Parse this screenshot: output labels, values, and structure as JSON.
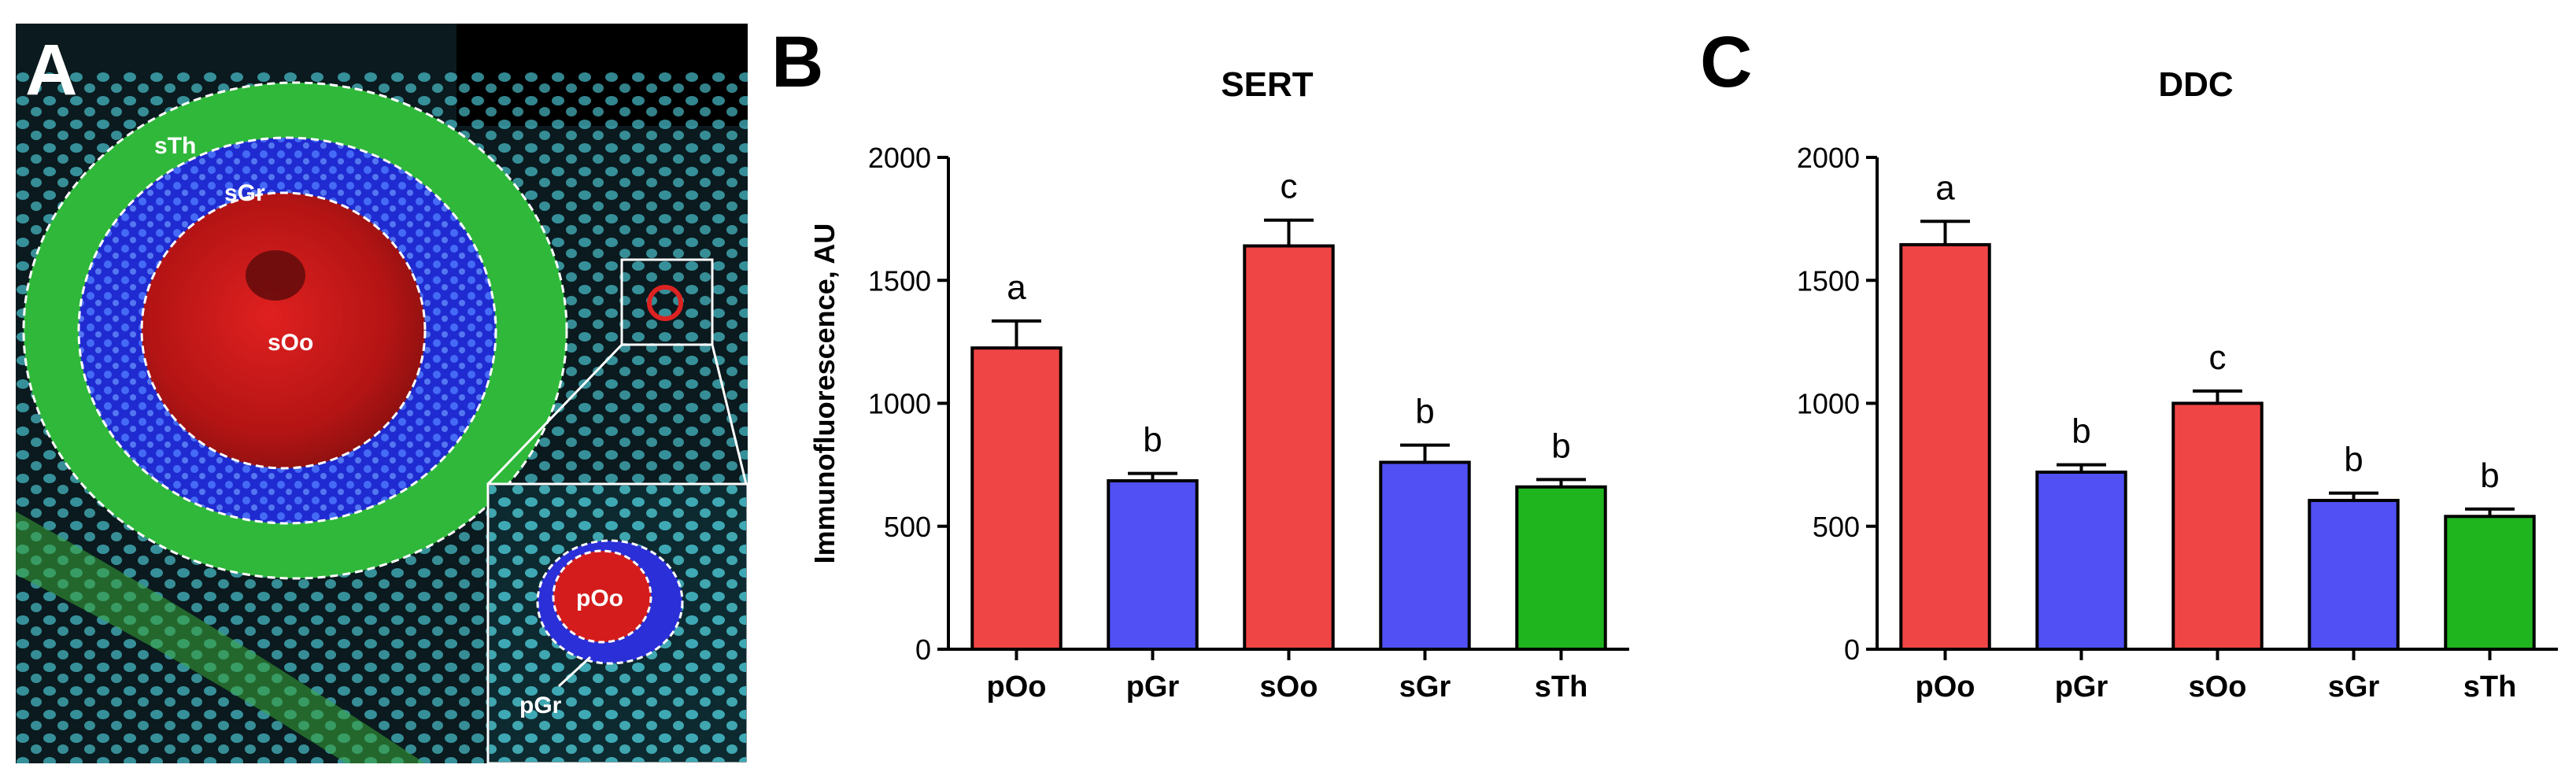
{
  "panel_a": {
    "letter": "A",
    "labels": {
      "sTh": "sTh",
      "sGr": "sGr",
      "sOo": "sOo",
      "pOo": "pOo",
      "pGr": "pGr"
    },
    "colors": {
      "background": "#070d12",
      "nuclei": "#4fd3e0",
      "theca": "#2fb83a",
      "granulosa": "#1f2bd0",
      "oocyte": "#c61818"
    }
  },
  "chart_data": [
    {
      "panel_letter": "B",
      "type": "bar",
      "title": "SERT",
      "ylabel": "Immunofluorescence, AU",
      "xlabel": "",
      "categories": [
        "pOo",
        "pGr",
        "sOo",
        "sGr",
        "sTh"
      ],
      "values": [
        1225,
        685,
        1640,
        760,
        660
      ],
      "errors": [
        110,
        30,
        105,
        70,
        30
      ],
      "letters": [
        "a",
        "b",
        "c",
        "b",
        "b"
      ],
      "colors": [
        "#f04545",
        "#5050f5",
        "#f04545",
        "#5050f5",
        "#1fb51f"
      ],
      "ylim": [
        0,
        2000
      ],
      "yticks": [
        0,
        500,
        1000,
        1500,
        2000
      ],
      "grid": false
    },
    {
      "panel_letter": "C",
      "type": "bar",
      "title": "DDC",
      "ylabel": "",
      "xlabel": "",
      "categories": [
        "pOo",
        "pGr",
        "sOo",
        "sGr",
        "sTh"
      ],
      "values": [
        1645,
        720,
        1000,
        605,
        540
      ],
      "errors": [
        95,
        30,
        50,
        30,
        30
      ],
      "letters": [
        "a",
        "b",
        "c",
        "b",
        "b"
      ],
      "colors": [
        "#f04545",
        "#5050f5",
        "#f04545",
        "#5050f5",
        "#1fb51f"
      ],
      "ylim": [
        0,
        2000
      ],
      "yticks": [
        0,
        500,
        1000,
        1500,
        2000
      ],
      "grid": false
    }
  ]
}
